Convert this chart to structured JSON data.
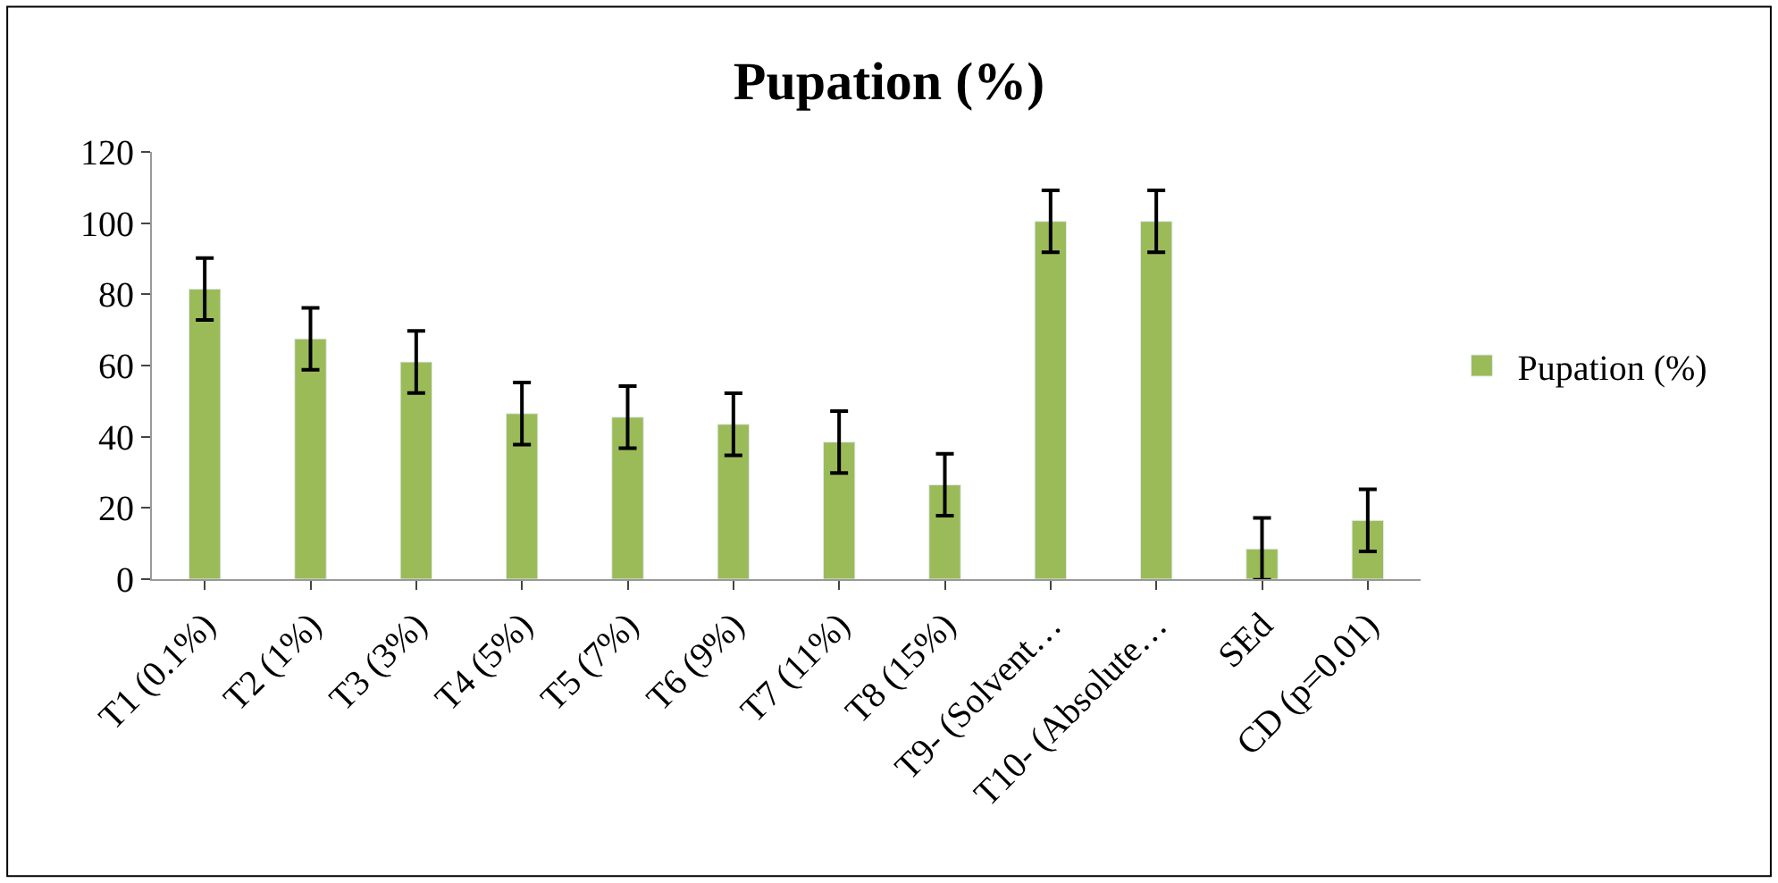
{
  "chart_data": {
    "type": "bar",
    "title": "Pupation (%)",
    "categories": [
      "T1 (0.1%)",
      "T2 (1%)",
      "T3 (3%)",
      "T4 (5%)",
      "T5 (7%)",
      "T6 (9%)",
      "T7 (11%)",
      "T8 (15%)",
      "T9- (Solvent…",
      "T10- (Absolute…",
      "SEd",
      "CD (p=0.01)"
    ],
    "series": [
      {
        "name": "Pupation (%)",
        "color": "#9bbb59",
        "values": [
          81.5,
          67.5,
          61,
          46.5,
          45.5,
          43.5,
          38.5,
          26.5,
          100.5,
          100.5,
          8.5,
          16.5
        ],
        "errors": [
          8.7,
          8.7,
          8.7,
          8.7,
          8.7,
          8.7,
          8.7,
          8.7,
          8.7,
          8.7,
          8.7,
          8.7
        ]
      }
    ],
    "ylim": [
      0,
      120
    ],
    "yticks": [
      0,
      20,
      40,
      60,
      80,
      100,
      120
    ],
    "legend": "right"
  }
}
